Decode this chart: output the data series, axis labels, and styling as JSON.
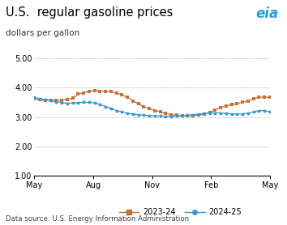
{
  "title": "U.S.  regular gasoline prices",
  "ylabel": "dollars per gallon",
  "source": "Data source: U.S. Energy Information Administration",
  "ylim": [
    1.0,
    5.0
  ],
  "yticks": [
    1.0,
    2.0,
    3.0,
    4.0,
    5.0
  ],
  "xtick_labels": [
    "May",
    "Aug",
    "Nov",
    "Feb",
    "May"
  ],
  "xtick_positions": [
    0.0,
    0.25,
    0.5,
    0.75,
    1.0
  ],
  "color_2023": "#C87137",
  "color_2024": "#3399CC",
  "legend_2023": "2023-24",
  "legend_2024": "2024-25",
  "series_2023": [
    3.62,
    3.59,
    3.57,
    3.56,
    3.58,
    3.58,
    3.61,
    3.64,
    3.78,
    3.83,
    3.88,
    3.91,
    3.88,
    3.88,
    3.86,
    3.82,
    3.76,
    3.67,
    3.55,
    3.45,
    3.35,
    3.28,
    3.22,
    3.18,
    3.12,
    3.08,
    3.06,
    3.05,
    3.04,
    3.05,
    3.07,
    3.09,
    3.15,
    3.25,
    3.32,
    3.38,
    3.42,
    3.46,
    3.5,
    3.55,
    3.62,
    3.67,
    3.68,
    3.67
  ],
  "series_2024": [
    3.67,
    3.63,
    3.6,
    3.56,
    3.52,
    3.49,
    3.47,
    3.48,
    3.49,
    3.5,
    3.5,
    3.48,
    3.43,
    3.36,
    3.29,
    3.22,
    3.17,
    3.13,
    3.1,
    3.08,
    3.06,
    3.05,
    3.04,
    3.03,
    3.02,
    3.02,
    3.03,
    3.04,
    3.06,
    3.08,
    3.1,
    3.12,
    3.13,
    3.14,
    3.14,
    3.12,
    3.11,
    3.1,
    3.11,
    3.13,
    3.17,
    3.22,
    3.22,
    3.18
  ]
}
